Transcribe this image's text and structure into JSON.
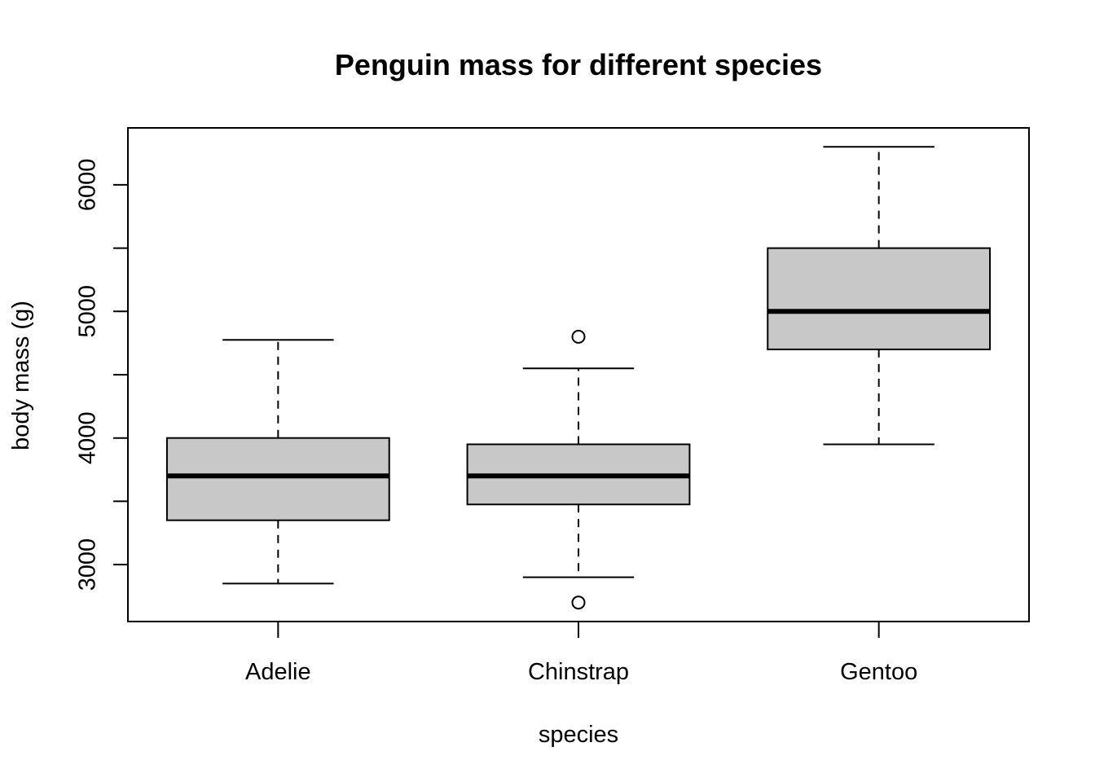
{
  "chart_data": {
    "type": "boxplot",
    "title": "Penguin mass for different species",
    "xlabel": "species",
    "ylabel": "body mass (g)",
    "ylim": [
      2550,
      6450
    ],
    "yticks": [
      3000,
      4000,
      5000,
      6000
    ],
    "y_minor_ticks": [
      3500,
      4500,
      5500
    ],
    "box_fill": "#c8c8c8",
    "categories": [
      "Adelie",
      "Chinstrap",
      "Gentoo"
    ],
    "boxes": [
      {
        "category": "Adelie",
        "whisker_low": 2850,
        "q1": 3350,
        "median": 3700,
        "q3": 4000,
        "whisker_high": 4775,
        "outliers": []
      },
      {
        "category": "Chinstrap",
        "whisker_low": 2900,
        "q1": 3475,
        "median": 3700,
        "q3": 3950,
        "whisker_high": 4550,
        "outliers": [
          2700,
          4800
        ]
      },
      {
        "category": "Gentoo",
        "whisker_low": 3950,
        "q1": 4700,
        "median": 5000,
        "q3": 5500,
        "whisker_high": 6300,
        "outliers": []
      }
    ],
    "grid": false,
    "legend": "none"
  }
}
